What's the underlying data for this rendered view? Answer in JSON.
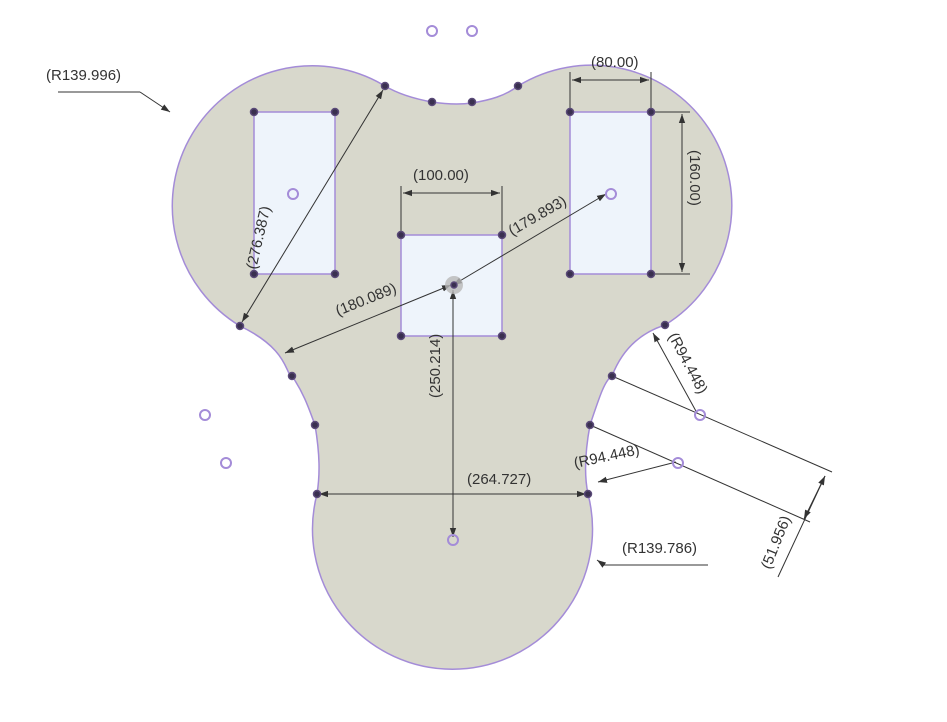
{
  "canvas": {
    "background": "#ffffff",
    "profile_fill": "#d8d8cc",
    "profile_stroke": "#a48cd8",
    "window_fill": "#eef4fb",
    "dimension_color": "#333333",
    "point_color": "#3a3050",
    "center_point_color": "#a48cd8"
  },
  "dimensions": {
    "r_top_left": "(R139.996)",
    "width_right_window": "(80.00)",
    "width_center_window": "(100.00)",
    "height_right_window": "(160.00)",
    "diag_left_window": "(276.387)",
    "diag_center_right": "(179.893)",
    "diag_center_left": "(180.089)",
    "vertical_center": "(250.214)",
    "r_right_upper": "(R94.448)",
    "r_right_lower": "(R94.448)",
    "width_neck": "(264.727)",
    "r_bottom": "(R139.786)",
    "offset_right": "(51.956)"
  }
}
